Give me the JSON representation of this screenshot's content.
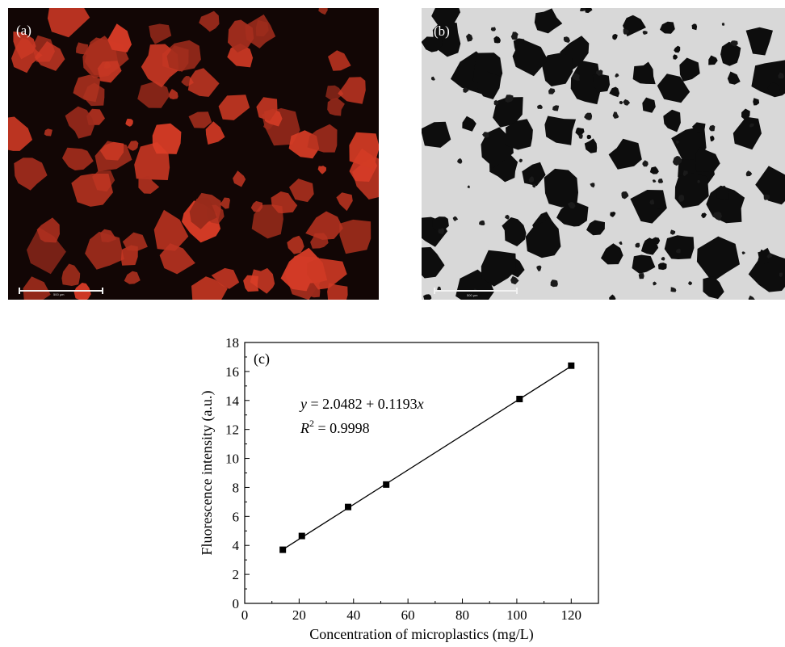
{
  "panels": {
    "a": {
      "letter": "(a)",
      "scale_label": "500 μm"
    },
    "b": {
      "letter": "(b)",
      "scale_label": "500 μm"
    }
  },
  "chart_data": {
    "type": "scatter",
    "panel_letter": "(c)",
    "xlabel": "Concentration of microplastics (mg/L)",
    "ylabel": "Fluorescence intensity (a.u.)",
    "xlim": [
      0,
      130
    ],
    "ylim": [
      0,
      18
    ],
    "xticks": [
      0,
      20,
      40,
      60,
      80,
      100,
      120
    ],
    "yticks": [
      0,
      2,
      4,
      6,
      8,
      10,
      12,
      14,
      16,
      18
    ],
    "series": [
      {
        "marker": "square",
        "x": [
          14,
          21,
          38,
          52,
          101,
          120
        ],
        "y": [
          3.7,
          4.65,
          6.65,
          8.2,
          14.1,
          16.4
        ]
      }
    ],
    "fit": {
      "intercept": 2.0482,
      "slope": 0.1193,
      "x_range": [
        14,
        120
      ]
    },
    "annotations": {
      "equation": {
        "lhs": "y",
        "rhs": " = 2.0482 + 0.1193",
        "var": "x"
      },
      "r2": {
        "symbol": "R",
        "exp": "2",
        "value": " = 0.9998"
      }
    },
    "grid": false,
    "legend": "none"
  }
}
